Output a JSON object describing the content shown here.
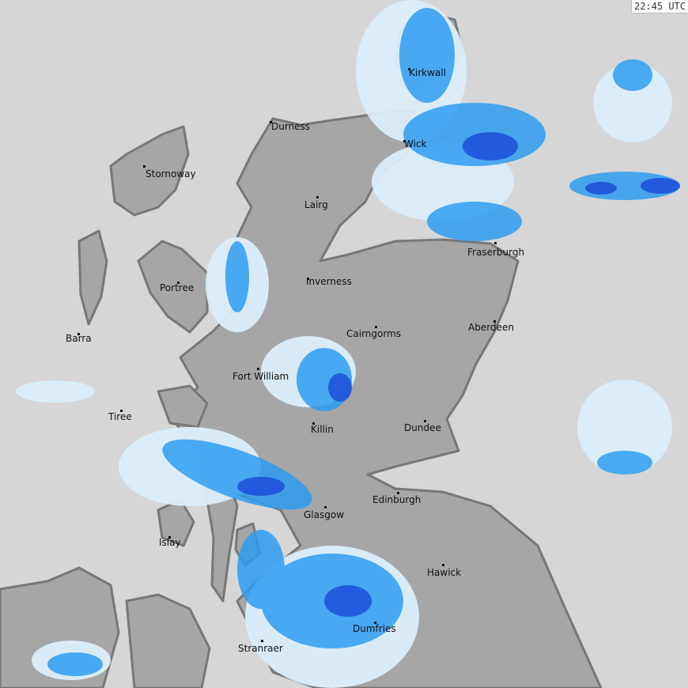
{
  "timestamp": "22:45 UTC",
  "colors": {
    "sea": "#d6d6d6",
    "land": "#a6a6a6",
    "coast": "#7a7a7a",
    "rain_light": "#dbeefa",
    "rain_medium": "#2f9cf0",
    "rain_heavy": "#1848d8"
  },
  "places": [
    {
      "name": "Kirkwall"
    },
    {
      "name": "Durness"
    },
    {
      "name": "Wick"
    },
    {
      "name": "Stornoway"
    },
    {
      "name": "Lairg"
    },
    {
      "name": "Fraserburgh"
    },
    {
      "name": "Portree"
    },
    {
      "name": "Inverness"
    },
    {
      "name": "Barra"
    },
    {
      "name": "Cairngorms"
    },
    {
      "name": "Aberdeen"
    },
    {
      "name": "Fort William"
    },
    {
      "name": "Tiree"
    },
    {
      "name": "Killin"
    },
    {
      "name": "Dundee"
    },
    {
      "name": "Edinburgh"
    },
    {
      "name": "Glasgow"
    },
    {
      "name": "Islay"
    },
    {
      "name": "Hawick"
    },
    {
      "name": "Dumfries"
    },
    {
      "name": "Stranraer"
    }
  ]
}
